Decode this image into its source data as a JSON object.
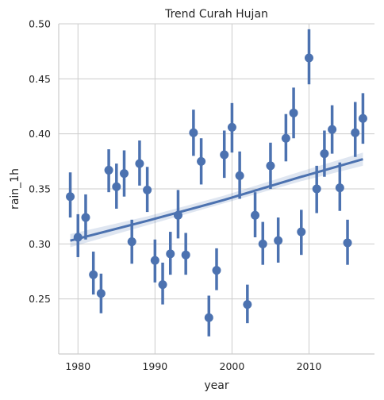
{
  "chart_data": {
    "type": "scatter",
    "title": "Trend Curah Hujan",
    "xlabel": "year",
    "ylabel": "rain_1h",
    "xlim": [
      1977.5,
      2018.5
    ],
    "ylim": [
      0.2,
      0.5
    ],
    "xticks": [
      1980,
      1990,
      2000,
      2010
    ],
    "yticks": [
      0.25,
      0.3,
      0.35,
      0.4,
      0.45,
      0.5
    ],
    "ytick_labels": [
      "0.25",
      "0.30",
      "0.35",
      "0.40",
      "0.45",
      "0.50"
    ],
    "grid": true,
    "colors": {
      "points": "#4c72b0",
      "band": "#4c72b0"
    },
    "points": [
      {
        "x": 1979,
        "y": 0.343,
        "lo": 0.324,
        "hi": 0.365
      },
      {
        "x": 1980,
        "y": 0.306,
        "lo": 0.288,
        "hi": 0.327
      },
      {
        "x": 1981,
        "y": 0.324,
        "lo": 0.304,
        "hi": 0.345
      },
      {
        "x": 1982,
        "y": 0.272,
        "lo": 0.254,
        "hi": 0.293
      },
      {
        "x": 1983,
        "y": 0.255,
        "lo": 0.237,
        "hi": 0.273
      },
      {
        "x": 1984,
        "y": 0.367,
        "lo": 0.347,
        "hi": 0.386
      },
      {
        "x": 1985,
        "y": 0.352,
        "lo": 0.332,
        "hi": 0.373
      },
      {
        "x": 1986,
        "y": 0.364,
        "lo": 0.343,
        "hi": 0.385
      },
      {
        "x": 1987,
        "y": 0.302,
        "lo": 0.282,
        "hi": 0.322
      },
      {
        "x": 1988,
        "y": 0.373,
        "lo": 0.353,
        "hi": 0.394
      },
      {
        "x": 1989,
        "y": 0.349,
        "lo": 0.329,
        "hi": 0.37
      },
      {
        "x": 1990,
        "y": 0.285,
        "lo": 0.265,
        "hi": 0.304
      },
      {
        "x": 1991,
        "y": 0.263,
        "lo": 0.245,
        "hi": 0.283
      },
      {
        "x": 1992,
        "y": 0.291,
        "lo": 0.272,
        "hi": 0.311
      },
      {
        "x": 1993,
        "y": 0.326,
        "lo": 0.305,
        "hi": 0.349
      },
      {
        "x": 1994,
        "y": 0.29,
        "lo": 0.272,
        "hi": 0.31
      },
      {
        "x": 1995,
        "y": 0.401,
        "lo": 0.38,
        "hi": 0.422
      },
      {
        "x": 1996,
        "y": 0.375,
        "lo": 0.354,
        "hi": 0.396
      },
      {
        "x": 1997,
        "y": 0.233,
        "lo": 0.216,
        "hi": 0.253
      },
      {
        "x": 1998,
        "y": 0.276,
        "lo": 0.258,
        "hi": 0.296
      },
      {
        "x": 1999,
        "y": 0.381,
        "lo": 0.36,
        "hi": 0.403
      },
      {
        "x": 2000,
        "y": 0.406,
        "lo": 0.383,
        "hi": 0.428
      },
      {
        "x": 2001,
        "y": 0.362,
        "lo": 0.341,
        "hi": 0.384
      },
      {
        "x": 2002,
        "y": 0.245,
        "lo": 0.228,
        "hi": 0.263
      },
      {
        "x": 2003,
        "y": 0.326,
        "lo": 0.306,
        "hi": 0.347
      },
      {
        "x": 2004,
        "y": 0.3,
        "lo": 0.281,
        "hi": 0.32
      },
      {
        "x": 2005,
        "y": 0.371,
        "lo": 0.35,
        "hi": 0.392
      },
      {
        "x": 2006,
        "y": 0.303,
        "lo": 0.283,
        "hi": 0.324
      },
      {
        "x": 2007,
        "y": 0.396,
        "lo": 0.375,
        "hi": 0.418
      },
      {
        "x": 2008,
        "y": 0.419,
        "lo": 0.396,
        "hi": 0.442
      },
      {
        "x": 2009,
        "y": 0.311,
        "lo": 0.29,
        "hi": 0.331
      },
      {
        "x": 2010,
        "y": 0.469,
        "lo": 0.445,
        "hi": 0.495
      },
      {
        "x": 2011,
        "y": 0.35,
        "lo": 0.328,
        "hi": 0.371
      },
      {
        "x": 2012,
        "y": 0.382,
        "lo": 0.361,
        "hi": 0.403
      },
      {
        "x": 2013,
        "y": 0.404,
        "lo": 0.382,
        "hi": 0.426
      },
      {
        "x": 2014,
        "y": 0.351,
        "lo": 0.33,
        "hi": 0.374
      },
      {
        "x": 2015,
        "y": 0.301,
        "lo": 0.281,
        "hi": 0.322
      },
      {
        "x": 2016,
        "y": 0.401,
        "lo": 0.379,
        "hi": 0.429
      },
      {
        "x": 2017,
        "y": 0.414,
        "lo": 0.391,
        "hi": 0.437
      }
    ],
    "regression": {
      "x": [
        1979,
        1989,
        1999,
        2009,
        2017
      ],
      "y": [
        0.303,
        0.321,
        0.34,
        0.361,
        0.377
      ],
      "lo": [
        0.297,
        0.317,
        0.337,
        0.357,
        0.371
      ],
      "hi": [
        0.309,
        0.325,
        0.344,
        0.366,
        0.383
      ]
    }
  }
}
